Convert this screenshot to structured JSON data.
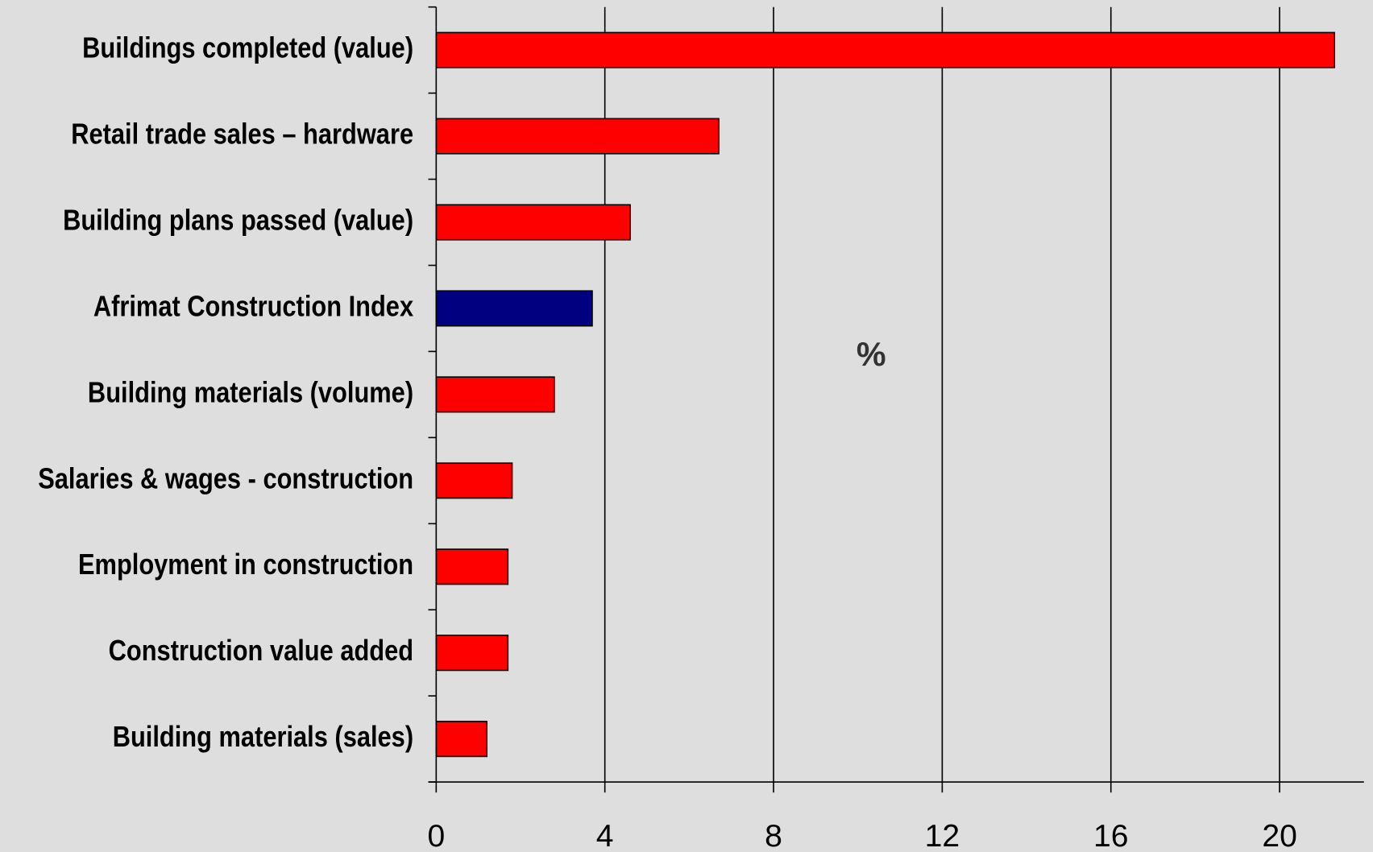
{
  "chart_data": {
    "type": "barh",
    "categories": [
      "Buildings completed  (value)",
      "Retail trade sales – hardware",
      "Building plans passed (value)",
      "Afrimat Construction Index",
      "Building materials (volume)",
      "Salaries & wages - construction",
      "Employment in construction",
      "Construction value added",
      "Building materials (sales)"
    ],
    "values": [
      21.3,
      6.7,
      4.6,
      3.7,
      2.8,
      1.8,
      1.7,
      1.7,
      1.2
    ],
    "colors": [
      "#ff0000",
      "#ff0000",
      "#ff0000",
      "#000080",
      "#ff0000",
      "#ff0000",
      "#ff0000",
      "#ff0000",
      "#ff0000"
    ],
    "annotation": "%",
    "xlim": [
      0,
      22
    ],
    "xticks": [
      0,
      4,
      8,
      12,
      16,
      20
    ],
    "grid": true
  }
}
